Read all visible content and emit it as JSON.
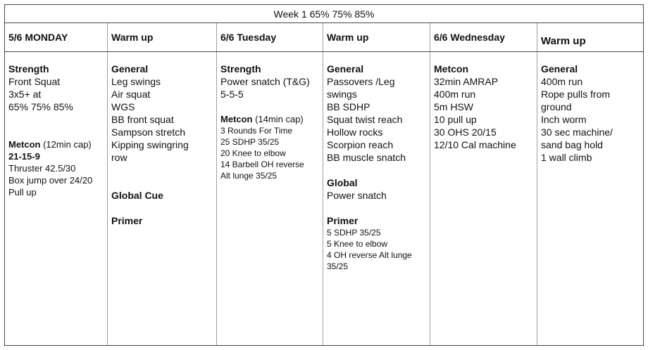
{
  "title": "Week 1 65% 75% 85%",
  "colors": {
    "background": "#ffffff",
    "text": "#111111",
    "border_dark": "#474747",
    "border_light": "#9f9f9f"
  },
  "columns": [
    {
      "header": "5/6 MONDAY",
      "lines": [
        {
          "bold": "Strength"
        },
        {
          "text": "Front Squat"
        },
        {
          "text": "3x5+ at"
        },
        {
          "text": "65% 75% 85%"
        },
        {
          "blank": true
        },
        {
          "blank": true
        },
        {
          "bold": "Metcon",
          "text": " (12min cap)",
          "size": "sm"
        },
        {
          "bold": "21-15-9",
          "size": "sm"
        },
        {
          "text": "Thruster 42.5/30",
          "size": "sm"
        },
        {
          "text": "Box jump over 24/20",
          "size": "sm"
        },
        {
          "text": "Pull up",
          "size": "sm"
        }
      ]
    },
    {
      "header": "Warm up",
      "lines": [
        {
          "bold": "General"
        },
        {
          "text": "Leg swings"
        },
        {
          "text": "Air squat"
        },
        {
          "text": "WGS"
        },
        {
          "text": "BB front squat"
        },
        {
          "text": "Sampson stretch"
        },
        {
          "text": "Kipping swingring"
        },
        {
          "text": "row"
        },
        {
          "blank": true
        },
        {
          "blank": true
        },
        {
          "bold": "Global Cue"
        },
        {
          "blank": true
        },
        {
          "bold": "Primer"
        }
      ]
    },
    {
      "header": "6/6 Tuesday",
      "lines": [
        {
          "bold": "Strength"
        },
        {
          "text": "Power snatch (T&G)"
        },
        {
          "text": "5-5-5"
        },
        {
          "blank": true
        },
        {
          "bold": "Metcon",
          "text": " (14min cap)",
          "size": "sm"
        },
        {
          "text": "3 Rounds For Time",
          "size": "xs"
        },
        {
          "text": "25 SDHP 35/25",
          "size": "xs"
        },
        {
          "text": "20 Knee to elbow",
          "size": "xs"
        },
        {
          "text": "14 Barbell OH reverse",
          "size": "xs"
        },
        {
          "text": "Alt lunge 35/25",
          "size": "xs"
        }
      ]
    },
    {
      "header": "Warm up",
      "lines": [
        {
          "bold": "General"
        },
        {
          "text": "Passovers /Leg"
        },
        {
          "text": "swings"
        },
        {
          "text": "BB SDHP"
        },
        {
          "text": "Squat twist reach"
        },
        {
          "text": "Hollow rocks"
        },
        {
          "text": "Scorpion reach"
        },
        {
          "text": "BB muscle snatch"
        },
        {
          "blank": true
        },
        {
          "bold": "Global"
        },
        {
          "text": "Power snatch"
        },
        {
          "blank": true
        },
        {
          "bold": "Primer"
        },
        {
          "text": "5 SDHP 35/25",
          "size": "xs"
        },
        {
          "text": "5 Knee to elbow",
          "size": "xs"
        },
        {
          "text": "4 OH reverse Alt lunge",
          "size": "xs"
        },
        {
          "text": "35/25",
          "size": "xs"
        }
      ]
    },
    {
      "header": "6/6 Wednesday",
      "lines": [
        {
          "bold": "Metcon"
        },
        {
          "text": "32min AMRAP"
        },
        {
          "text": "400m run"
        },
        {
          "text": "5m HSW"
        },
        {
          "text": "10 pull up"
        },
        {
          "text": "30 OHS 20/15"
        },
        {
          "text": "12/10 Cal machine"
        }
      ]
    },
    {
      "header": "Warm up",
      "lines": [
        {
          "bold": "General"
        },
        {
          "text": "400m run"
        },
        {
          "text": "Rope pulls from"
        },
        {
          "text": "ground"
        },
        {
          "text": "Inch worm"
        },
        {
          "text": "30 sec machine/"
        },
        {
          "text": "sand bag hold"
        },
        {
          "text": "1 wall climb"
        }
      ]
    }
  ]
}
